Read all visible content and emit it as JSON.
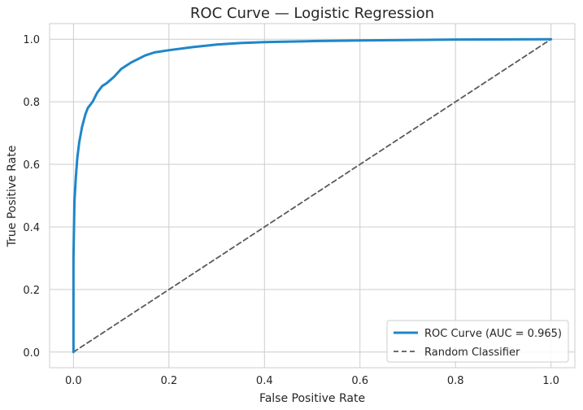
{
  "chart_data": {
    "type": "line",
    "title": "ROC Curve — Logistic Regression",
    "xlabel": "False Positive Rate",
    "ylabel": "True Positive Rate",
    "xlim": [
      -0.05,
      1.05
    ],
    "ylim": [
      -0.05,
      1.05
    ],
    "xticks": [
      "0.0",
      "0.2",
      "0.4",
      "0.6",
      "0.8",
      "1.0"
    ],
    "yticks": [
      "0.0",
      "0.2",
      "0.4",
      "0.6",
      "0.8",
      "1.0"
    ],
    "grid": true,
    "legend_position": "lower-right",
    "series": [
      {
        "name": "ROC Curve (AUC = 0.965)",
        "color": "#1f86c8",
        "style": "solid",
        "x": [
          0.0,
          0.0,
          0.002,
          0.005,
          0.008,
          0.012,
          0.018,
          0.025,
          0.03,
          0.04,
          0.05,
          0.06,
          0.07,
          0.085,
          0.1,
          0.12,
          0.15,
          0.17,
          0.2,
          0.25,
          0.3,
          0.35,
          0.4,
          0.5,
          0.6,
          0.8,
          1.0
        ],
        "y": [
          0.0,
          0.3,
          0.48,
          0.56,
          0.62,
          0.67,
          0.72,
          0.76,
          0.78,
          0.8,
          0.83,
          0.85,
          0.86,
          0.88,
          0.905,
          0.925,
          0.948,
          0.958,
          0.965,
          0.975,
          0.983,
          0.988,
          0.991,
          0.994,
          0.996,
          0.999,
          1.0
        ]
      },
      {
        "name": "Random Classifier",
        "color": "#595959",
        "style": "dashed",
        "x": [
          0.0,
          1.0
        ],
        "y": [
          0.0,
          1.0
        ]
      }
    ]
  }
}
